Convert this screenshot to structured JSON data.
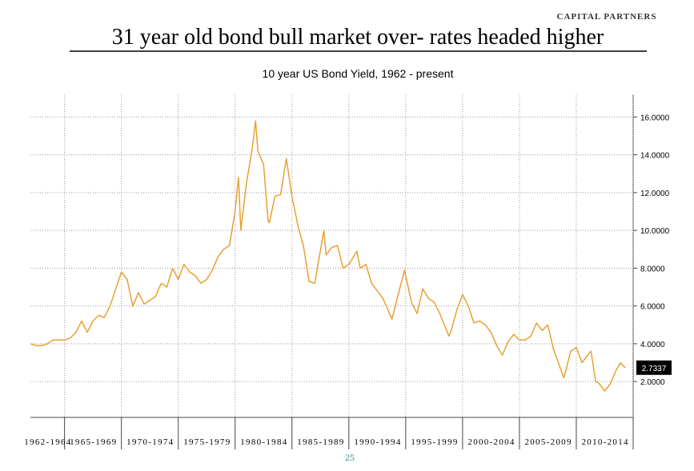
{
  "header": {
    "firm": "CAPITAL PARTNERS",
    "title": "31 year old bond bull market over- rates headed higher",
    "page": "25"
  },
  "chart_data": {
    "type": "line",
    "title": "10 year US Bond Yield, 1962 - present",
    "xlim": [
      1962,
      2015
    ],
    "xgrid": [
      1965,
      1970,
      1975,
      1980,
      1985,
      1990,
      1995,
      2000,
      2005,
      2010,
      2015
    ],
    "xticks": [
      {
        "value": 1963.5,
        "label": "1962-1964"
      },
      {
        "value": 1967.5,
        "label": "1965-1969"
      },
      {
        "value": 1972.5,
        "label": "1970-1974"
      },
      {
        "value": 1977.5,
        "label": "1975-1979"
      },
      {
        "value": 1982.5,
        "label": "1980-1984"
      },
      {
        "value": 1987.5,
        "label": "1985-1989"
      },
      {
        "value": 1992.5,
        "label": "1990-1994"
      },
      {
        "value": 1997.5,
        "label": "1995-1999"
      },
      {
        "value": 2002.5,
        "label": "2000-2004"
      },
      {
        "value": 2007.5,
        "label": "2005-2009"
      },
      {
        "value": 2012.5,
        "label": "2010-2014"
      }
    ],
    "ylim": [
      0.1,
      17.2
    ],
    "yticks": [
      {
        "value": 2,
        "label": "2.0000"
      },
      {
        "value": 4,
        "label": "4.0000"
      },
      {
        "value": 6,
        "label": "6.0000"
      },
      {
        "value": 8,
        "label": "8.0000"
      },
      {
        "value": 10,
        "label": "10.0000"
      },
      {
        "value": 12,
        "label": "12.0000"
      },
      {
        "value": 14,
        "label": "14.0000"
      },
      {
        "value": 16,
        "label": "16.0000"
      }
    ],
    "grid": true,
    "last_value_label": "2.7337",
    "series": [
      {
        "color": "#e8a033",
        "x": [
          1962.0,
          1962.5,
          1963.0,
          1963.5,
          1964.0,
          1964.5,
          1965.0,
          1965.5,
          1966.0,
          1966.5,
          1967.0,
          1967.5,
          1968.0,
          1968.5,
          1969.0,
          1969.5,
          1970.0,
          1970.5,
          1971.0,
          1971.5,
          1972.0,
          1972.5,
          1973.0,
          1973.5,
          1974.0,
          1974.5,
          1975.0,
          1975.5,
          1976.0,
          1976.5,
          1977.0,
          1977.5,
          1978.0,
          1978.5,
          1979.0,
          1979.5,
          1980.0,
          1980.3,
          1980.5,
          1981.0,
          1981.5,
          1981.8,
          1982.0,
          1982.5,
          1982.9,
          1983.0,
          1983.5,
          1984.0,
          1984.5,
          1985.0,
          1985.5,
          1986.0,
          1986.5,
          1987.0,
          1987.8,
          1988.0,
          1988.5,
          1989.0,
          1989.5,
          1990.0,
          1990.7,
          1991.0,
          1991.5,
          1992.0,
          1992.5,
          1993.0,
          1993.8,
          1994.0,
          1994.9,
          1995.0,
          1995.5,
          1996.0,
          1996.5,
          1997.0,
          1997.5,
          1998.0,
          1998.8,
          1999.0,
          1999.5,
          2000.0,
          2000.5,
          2001.0,
          2001.5,
          2002.0,
          2002.5,
          2003.0,
          2003.5,
          2004.0,
          2004.5,
          2005.0,
          2005.5,
          2006.0,
          2006.5,
          2007.0,
          2007.5,
          2008.0,
          2008.9,
          2009.0,
          2009.5,
          2010.0,
          2010.5,
          2011.0,
          2011.3,
          2011.7,
          2012.0,
          2012.5,
          2013.0,
          2013.5,
          2013.9,
          2014.0,
          2014.3
        ],
        "values": [
          4.0,
          3.9,
          3.9,
          4.0,
          4.2,
          4.2,
          4.2,
          4.3,
          4.6,
          5.2,
          4.6,
          5.2,
          5.5,
          5.4,
          6.0,
          6.9,
          7.8,
          7.4,
          6.0,
          6.7,
          6.1,
          6.3,
          6.5,
          7.2,
          7.0,
          8.0,
          7.4,
          8.2,
          7.8,
          7.6,
          7.2,
          7.4,
          7.9,
          8.6,
          9.0,
          9.2,
          11.0,
          12.8,
          10.0,
          12.5,
          14.3,
          15.8,
          14.2,
          13.5,
          10.5,
          10.4,
          11.8,
          11.9,
          13.8,
          11.8,
          10.3,
          9.2,
          7.3,
          7.2,
          10.0,
          8.7,
          9.1,
          9.2,
          8.0,
          8.2,
          8.9,
          8.0,
          8.2,
          7.2,
          6.8,
          6.4,
          5.3,
          5.8,
          7.9,
          7.6,
          6.2,
          5.6,
          6.9,
          6.4,
          6.2,
          5.6,
          4.4,
          4.7,
          5.8,
          6.6,
          6.0,
          5.1,
          5.2,
          5.0,
          4.6,
          3.9,
          3.4,
          4.1,
          4.5,
          4.2,
          4.2,
          4.4,
          5.1,
          4.7,
          5.0,
          3.7,
          2.2,
          2.4,
          3.6,
          3.8,
          3.0,
          3.4,
          3.6,
          2.0,
          1.9,
          1.5,
          1.9,
          2.6,
          3.0,
          2.9,
          2.7337
        ]
      }
    ]
  }
}
